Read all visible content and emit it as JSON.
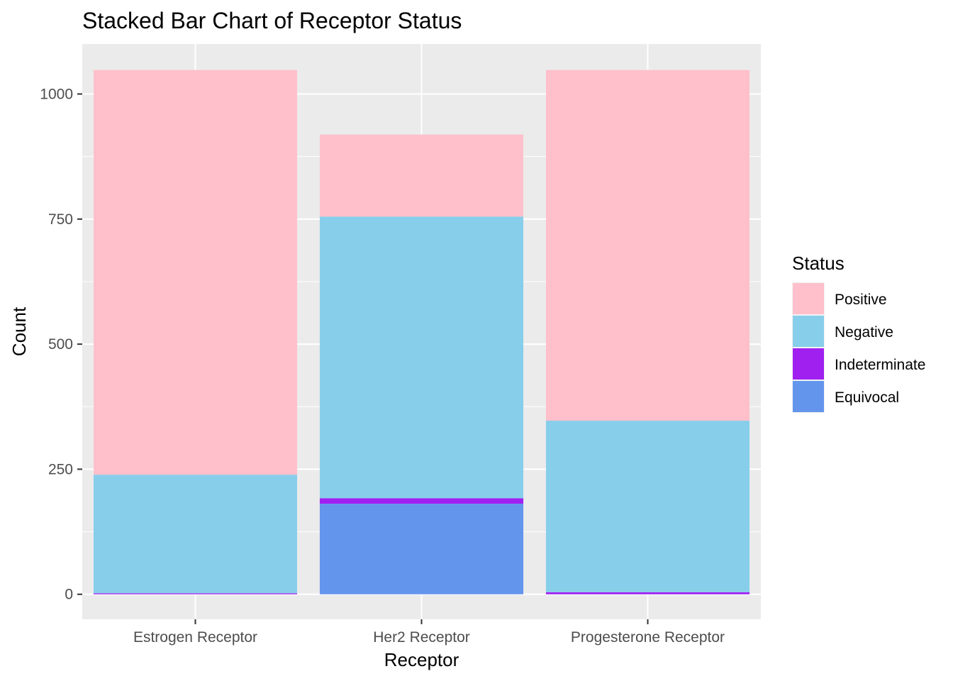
{
  "chart_data": {
    "type": "bar",
    "stacked": true,
    "title": "Stacked Bar Chart of Receptor Status",
    "xlabel": "Receptor",
    "ylabel": "Count",
    "categories": [
      "Estrogen Receptor",
      "Her2 Receptor",
      "Progesterone Receptor"
    ],
    "ylim": [
      -50,
      1100
    ],
    "yticks": [
      0,
      250,
      500,
      750,
      1000
    ],
    "ytick_labels": [
      "0",
      "250",
      "500",
      "750",
      "1000"
    ],
    "series": [
      {
        "name": "Equivocal",
        "color": "#6495ED",
        "values": [
          0,
          181,
          0
        ]
      },
      {
        "name": "Indeterminate",
        "color": "#A020F0",
        "values": [
          2,
          11,
          4
        ]
      },
      {
        "name": "Negative",
        "color": "#87CEEB",
        "values": [
          237,
          563,
          343
        ]
      },
      {
        "name": "Positive",
        "color": "#FFC0CB",
        "values": [
          809,
          164,
          701
        ]
      }
    ],
    "legend": {
      "title": "Status",
      "position": "right",
      "order": [
        "Positive",
        "Negative",
        "Indeterminate",
        "Equivocal"
      ]
    },
    "panel_background": "#EBEBEB",
    "grid": true
  }
}
